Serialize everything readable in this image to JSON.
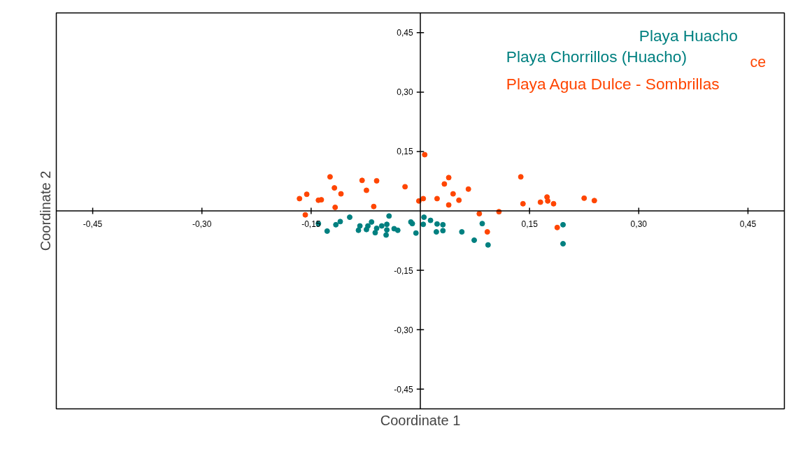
{
  "chart_data": {
    "type": "scatter",
    "xlabel": "Coordinate 1",
    "ylabel": "Coordinate 2",
    "xlim": [
      -0.5,
      0.5
    ],
    "ylim": [
      -0.5,
      0.5
    ],
    "xticks": [
      {
        "value": -0.45,
        "label": "-0,45"
      },
      {
        "value": -0.3,
        "label": "-0,30"
      },
      {
        "value": -0.15,
        "label": "-0,15"
      },
      {
        "value": 0.15,
        "label": "0,15"
      },
      {
        "value": 0.3,
        "label": "0,30"
      },
      {
        "value": 0.45,
        "label": "0,45"
      }
    ],
    "yticks": [
      {
        "value": -0.45,
        "label": "-0,45"
      },
      {
        "value": -0.3,
        "label": "-0,30"
      },
      {
        "value": -0.15,
        "label": "-0,15"
      },
      {
        "value": 0.15,
        "label": "0,15"
      },
      {
        "value": 0.3,
        "label": "0,30"
      },
      {
        "value": 0.45,
        "label": "0,45"
      }
    ],
    "legend": "top right",
    "marker": "circle",
    "annotations": [
      "Playa Huacho",
      "ce"
    ],
    "series": [
      {
        "name": "Playa Chorrillos (Huacho)",
        "color": "#008080",
        "x": [
          -0.14,
          -0.128,
          -0.116,
          -0.11,
          -0.097,
          -0.083,
          -0.085,
          -0.074,
          -0.072,
          -0.067,
          -0.062,
          -0.06,
          -0.053,
          -0.046,
          -0.046,
          -0.047,
          -0.043,
          -0.036,
          -0.031,
          -0.013,
          -0.011,
          -0.006,
          0.005,
          0.004,
          0.014,
          0.023,
          0.031,
          0.022,
          0.031,
          0.057,
          0.074,
          0.085,
          0.093,
          0.196,
          0.196
        ],
        "values": [
          -0.032,
          -0.051,
          -0.035,
          -0.027,
          -0.016,
          -0.038,
          -0.049,
          -0.047,
          -0.038,
          -0.028,
          -0.055,
          -0.044,
          -0.038,
          -0.034,
          -0.048,
          -0.061,
          -0.013,
          -0.045,
          -0.049,
          -0.028,
          -0.032,
          -0.056,
          -0.016,
          -0.034,
          -0.024,
          -0.033,
          -0.035,
          -0.053,
          -0.05,
          -0.053,
          -0.074,
          -0.032,
          -0.086,
          -0.035,
          -0.083
        ]
      },
      {
        "name": "Playa Agua Dulce - Sombrillas",
        "color": "#ff4500",
        "x": [
          -0.166,
          -0.156,
          -0.14,
          -0.136,
          -0.124,
          -0.118,
          -0.109,
          -0.117,
          -0.158,
          -0.08,
          -0.074,
          -0.06,
          -0.064,
          -0.021,
          -0.002,
          0.004,
          0.006,
          0.023,
          0.039,
          0.033,
          0.045,
          0.053,
          0.039,
          0.066,
          0.081,
          0.108,
          0.138,
          0.141,
          0.165,
          0.174,
          0.175,
          0.183,
          0.225,
          0.239,
          0.092,
          0.188
        ],
        "values": [
          0.031,
          0.042,
          0.027,
          0.028,
          0.086,
          0.058,
          0.043,
          0.009,
          -0.01,
          0.077,
          0.052,
          0.076,
          0.011,
          0.061,
          0.025,
          0.031,
          0.142,
          0.031,
          0.084,
          0.068,
          0.043,
          0.027,
          0.015,
          0.055,
          -0.007,
          -0.002,
          0.086,
          0.018,
          0.022,
          0.035,
          0.025,
          0.018,
          0.032,
          0.026,
          -0.053,
          -0.042
        ]
      }
    ]
  }
}
